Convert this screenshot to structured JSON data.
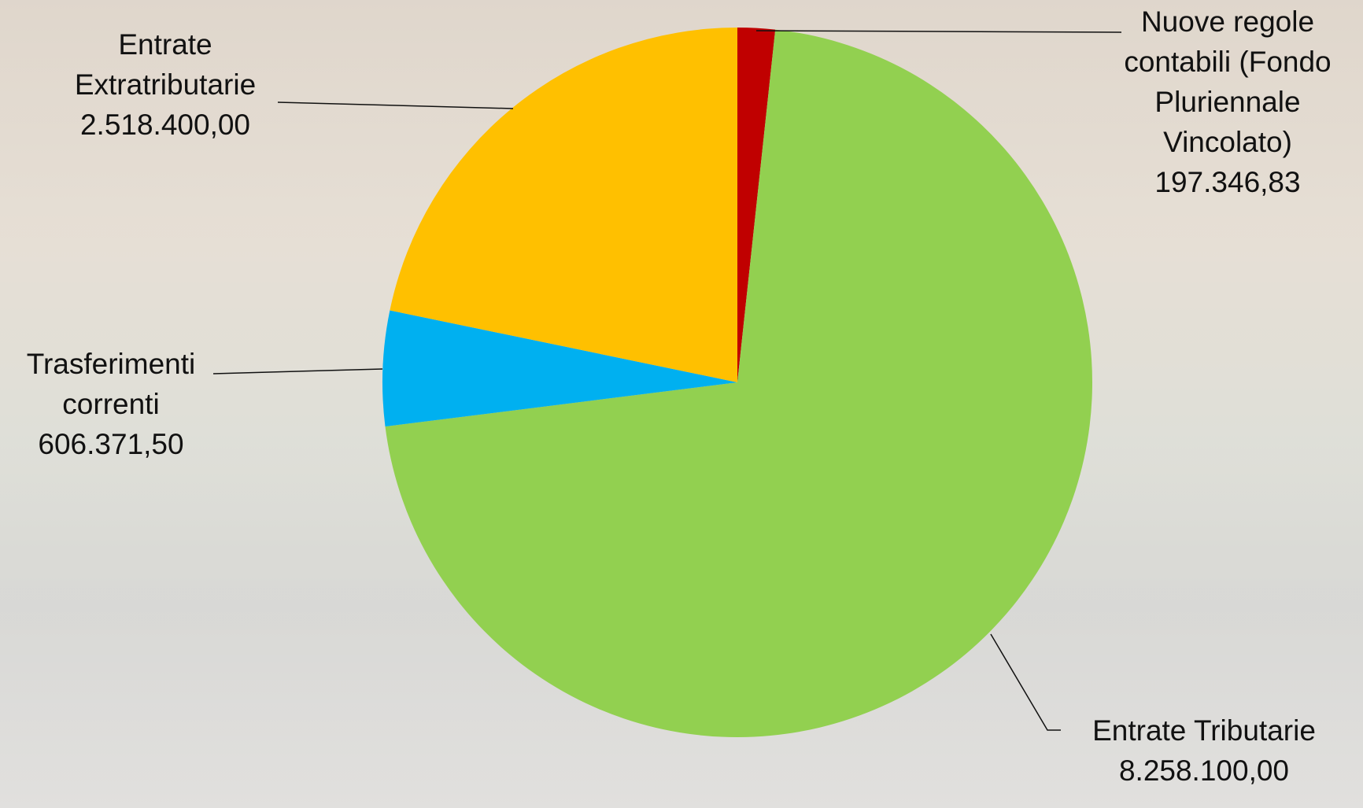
{
  "chart_data": {
    "type": "pie",
    "categories": [
      "Nuove regole contabili (Fondo Pluriennale Vincolato)",
      "Entrate Tributarie",
      "Trasferimenti correnti",
      "Entrate Extratributarie"
    ],
    "values": [
      197346.83,
      8258100.0,
      606371.5,
      2518400.0
    ],
    "value_labels": [
      "197.346,83",
      "8.258.100,00",
      "606.371,50",
      "2.518.400,00"
    ],
    "colors": [
      "#c00000",
      "#92d050",
      "#00b0f0",
      "#ffc000"
    ]
  }
}
